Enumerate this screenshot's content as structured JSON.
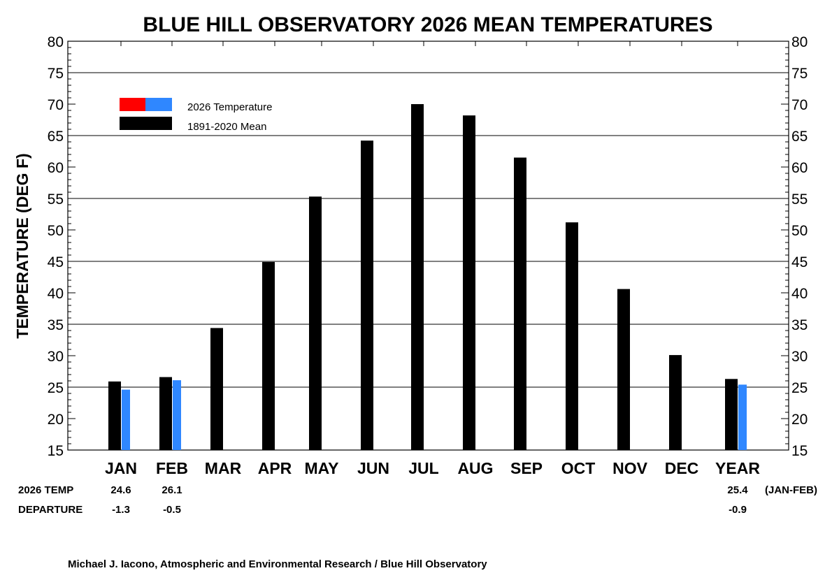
{
  "chart_data": {
    "type": "bar",
    "title": "BLUE HILL OBSERVATORY 2026 MEAN TEMPERATURES",
    "ylabel": "TEMPERATURE (DEG F)",
    "xlabel": "",
    "ylim": [
      15,
      80
    ],
    "yticks": [
      "15",
      "20",
      "25",
      "30",
      "35",
      "40",
      "45",
      "50",
      "55",
      "60",
      "65",
      "70",
      "75",
      "80"
    ],
    "grid_y": [
      25,
      35,
      45,
      55,
      65,
      75
    ],
    "categories": [
      "JAN",
      "FEB",
      "MAR",
      "APR",
      "MAY",
      "JUN",
      "JUL",
      "AUG",
      "SEP",
      "OCT",
      "NOV",
      "DEC",
      "YEAR"
    ],
    "series": [
      {
        "name": "1891-2020 Mean",
        "color": "#000000",
        "values": [
          25.9,
          26.6,
          34.4,
          44.9,
          55.3,
          64.2,
          70.0,
          68.2,
          61.5,
          51.2,
          40.6,
          30.1,
          26.3
        ]
      },
      {
        "name": "2026 Temperature",
        "color": "#2f87ff",
        "below_color": "#2f87ff",
        "above_color": "#ff0000",
        "values": [
          24.6,
          26.1,
          null,
          null,
          null,
          null,
          null,
          null,
          null,
          null,
          null,
          null,
          25.4
        ]
      }
    ],
    "legend_position": "top-left",
    "legend": [
      {
        "label": "2026 Temperature",
        "swatch": [
          "#ff0000",
          "#2f87ff"
        ]
      },
      {
        "label": "1891-2020 Mean",
        "swatch": [
          "#000000"
        ]
      }
    ],
    "table": {
      "temp_label": "2026 TEMP",
      "departure_label": "DEPARTURE",
      "temps": [
        "24.6",
        "26.1",
        "",
        "",
        "",
        "",
        "",
        "",
        "",
        "",
        "",
        "",
        "25.4"
      ],
      "departures": [
        "-1.3",
        "-0.5",
        "",
        "",
        "",
        "",
        "",
        "",
        "",
        "",
        "",
        "",
        "-0.9"
      ],
      "period_note": "(JAN-FEB)"
    },
    "credit": "Michael J. Iacono, Atmospheric and Environmental Research / Blue Hill Observatory"
  }
}
